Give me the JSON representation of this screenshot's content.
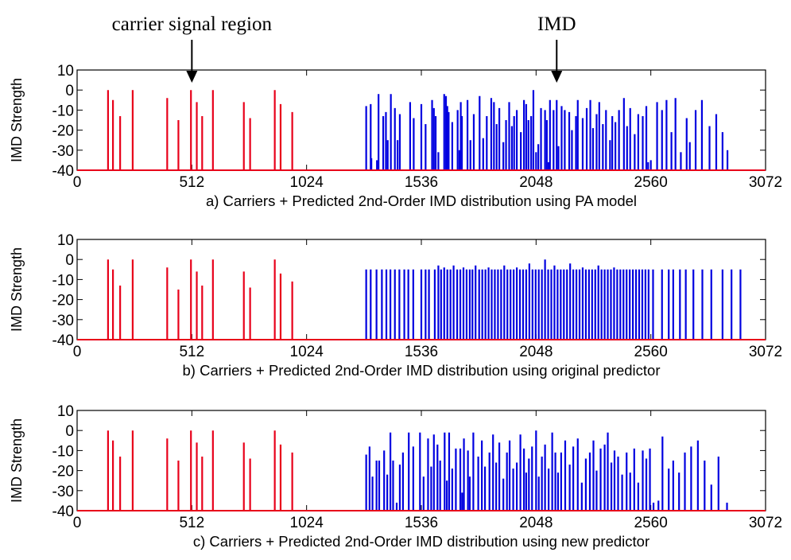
{
  "figure": {
    "annotations": [
      {
        "id": "carrier",
        "text": "carrier signal region",
        "x": 512
      },
      {
        "id": "imd",
        "text": "IMD",
        "x": 2140
      }
    ]
  },
  "chart_data": [
    {
      "type": "bar",
      "caption": "a) Carriers + Predicted 2nd-Order IMD distribution using PA model",
      "ylabel": "IMD Strength",
      "xlim": [
        0,
        3072
      ],
      "ylim": [
        -40,
        10
      ],
      "xticks": [
        0,
        512,
        1024,
        1536,
        2048,
        2560,
        3072
      ],
      "yticks": [
        10,
        0,
        -10,
        -20,
        -30,
        -40
      ],
      "baseline": -40,
      "series": [
        {
          "color": "#e8001a",
          "x": [
            138,
            160,
            192,
            248,
            402,
            452,
            508,
            534,
            558,
            606,
            744,
            772,
            882,
            908,
            960
          ],
          "y": [
            0,
            -5,
            -13,
            0,
            -4,
            -15,
            0,
            -6,
            -13,
            0,
            -6,
            -14,
            0,
            -7,
            -11
          ]
        },
        {
          "color": "#0000e0",
          "x": [
            1290,
            1310,
            1313,
            1338,
            1345,
            1366,
            1378,
            1386,
            1400,
            1418,
            1430,
            1440,
            1486,
            1502,
            1536,
            1555,
            1584,
            1592,
            1600,
            1612,
            1638,
            1646,
            1652,
            1658,
            1674,
            1698,
            1706,
            1712,
            1717,
            1742,
            1755,
            1770,
            1796,
            1812,
            1828,
            1848,
            1860,
            1872,
            1884,
            1902,
            1914,
            1928,
            1940,
            1950,
            1962,
            1980,
            1994,
            2004,
            2014,
            2026,
            2036,
            2048,
            2058,
            2070,
            2088,
            2096,
            2104,
            2110,
            2126,
            2140,
            2148,
            2162,
            2176,
            2196,
            2208,
            2226,
            2234,
            2256,
            2274,
            2290,
            2302,
            2318,
            2330,
            2346,
            2360,
            2378,
            2388,
            2402,
            2418,
            2440,
            2454,
            2468,
            2488,
            2504,
            2524,
            2540,
            2548,
            2560,
            2588,
            2610,
            2630,
            2652,
            2670,
            2694,
            2720,
            2734,
            2760,
            2788,
            2822,
            2852,
            2880,
            2902
          ],
          "y": [
            -8,
            -7,
            -34,
            -35,
            -2,
            -13,
            -11,
            -25,
            -2,
            -9,
            -25,
            -12,
            -6,
            -14,
            -7,
            -17,
            -5,
            -9,
            -13,
            -31,
            -2,
            -3,
            -8,
            -11,
            -16,
            -10,
            -30,
            -6,
            -13,
            -5,
            -25,
            -12,
            -3,
            -24,
            -13,
            -4,
            -6,
            -17,
            -9,
            -26,
            -15,
            -6,
            -18,
            -13,
            -10,
            -21,
            -5,
            -7,
            -15,
            -13,
            0,
            -31,
            -27,
            -9,
            -10,
            -15,
            -36,
            -5,
            -10,
            -5,
            -28,
            -8,
            -10,
            -11,
            -20,
            -13,
            -5,
            -14,
            -9,
            -5,
            -19,
            -12,
            -6,
            -17,
            -10,
            -25,
            -13,
            -16,
            -10,
            -4,
            -18,
            -9,
            -22,
            -12,
            -13,
            -8,
            -36,
            -35,
            -6,
            -10,
            -5,
            -21,
            -4,
            -31,
            -14,
            -26,
            -10,
            -5,
            -18,
            -12,
            -21,
            -30
          ]
        }
      ]
    },
    {
      "type": "bar",
      "caption": "b) Carriers + Predicted 2nd-Order IMD distribution using original predictor",
      "ylabel": "IMD Strength",
      "xlim": [
        0,
        3072
      ],
      "ylim": [
        -40,
        10
      ],
      "xticks": [
        0,
        512,
        1024,
        1536,
        2048,
        2560,
        3072
      ],
      "yticks": [
        10,
        0,
        -10,
        -20,
        -30,
        -40
      ],
      "baseline": -40,
      "series": [
        {
          "color": "#e8001a",
          "x": [
            138,
            160,
            192,
            248,
            402,
            452,
            508,
            534,
            558,
            606,
            744,
            772,
            882,
            908,
            960
          ],
          "y": [
            0,
            -5,
            -13,
            0,
            -4,
            -15,
            0,
            -6,
            -13,
            0,
            -6,
            -14,
            0,
            -7,
            -11
          ]
        },
        {
          "color": "#0000e0",
          "x": [
            1290,
            1310,
            1336,
            1360,
            1380,
            1398,
            1418,
            1438,
            1460,
            1478,
            1500,
            1536,
            1555,
            1570,
            1596,
            1612,
            1624,
            1638,
            1652,
            1666,
            1680,
            1696,
            1710,
            1724,
            1738,
            1752,
            1764,
            1778,
            1794,
            1808,
            1822,
            1836,
            1850,
            1864,
            1878,
            1892,
            1906,
            1920,
            1934,
            1948,
            1962,
            1976,
            1990,
            2004,
            2018,
            2032,
            2046,
            2060,
            2074,
            2088,
            2102,
            2116,
            2130,
            2144,
            2158,
            2172,
            2186,
            2200,
            2214,
            2228,
            2242,
            2256,
            2270,
            2284,
            2298,
            2312,
            2326,
            2340,
            2354,
            2368,
            2382,
            2396,
            2410,
            2424,
            2438,
            2452,
            2466,
            2480,
            2494,
            2508,
            2522,
            2536,
            2550,
            2570,
            2610,
            2640,
            2660,
            2690,
            2716,
            2750,
            2790,
            2830,
            2880,
            2920,
            2960
          ],
          "y": [
            -5,
            -5,
            -5,
            -5,
            -5,
            -5,
            -5,
            -5,
            -5,
            -5,
            -5,
            -5,
            -5,
            -5,
            -5,
            -3,
            -5,
            -4,
            -5,
            -5,
            -3,
            -5,
            -5,
            -4,
            -5,
            -5,
            -5,
            -3,
            -5,
            -5,
            -5,
            -4,
            -5,
            -5,
            -5,
            -5,
            -3,
            -5,
            -5,
            -5,
            -4,
            -5,
            -5,
            -5,
            -2,
            -5,
            -5,
            -5,
            -5,
            0,
            -5,
            -5,
            -3,
            -5,
            -5,
            -5,
            -5,
            -2,
            -5,
            -5,
            -5,
            -4,
            -5,
            -5,
            -5,
            -5,
            -3,
            -5,
            -5,
            -5,
            -5,
            -4,
            -5,
            -5,
            -5,
            -5,
            -5,
            -5,
            -5,
            -5,
            -5,
            -5,
            -5,
            -5,
            -5,
            -5,
            -5,
            -5,
            -5,
            -5,
            -5,
            -5,
            -5,
            -5,
            -5
          ]
        }
      ]
    },
    {
      "type": "bar",
      "caption": "c) Carriers + Predicted 2nd-Order IMD distribution using new predictor",
      "ylabel": "IMD Strength",
      "xlim": [
        0,
        3072
      ],
      "ylim": [
        -40,
        10
      ],
      "xticks": [
        0,
        512,
        1024,
        1536,
        2048,
        2560,
        3072
      ],
      "yticks": [
        10,
        0,
        -10,
        -20,
        -30,
        -40
      ],
      "baseline": -40,
      "series": [
        {
          "color": "#e8001a",
          "x": [
            138,
            160,
            192,
            248,
            402,
            452,
            508,
            534,
            558,
            606,
            744,
            772,
            882,
            908,
            960
          ],
          "y": [
            0,
            -5,
            -13,
            0,
            -4,
            -15,
            0,
            -6,
            -13,
            0,
            -6,
            -14,
            0,
            -7,
            -11
          ]
        },
        {
          "color": "#0000e0",
          "x": [
            1290,
            1305,
            1318,
            1336,
            1348,
            1370,
            1384,
            1398,
            1410,
            1426,
            1440,
            1454,
            1480,
            1500,
            1530,
            1546,
            1566,
            1580,
            1592,
            1608,
            1620,
            1640,
            1650,
            1660,
            1674,
            1690,
            1710,
            1718,
            1726,
            1744,
            1752,
            1768,
            1790,
            1806,
            1820,
            1840,
            1856,
            1870,
            1884,
            1902,
            1918,
            1930,
            1946,
            1962,
            1978,
            1994,
            2004,
            2016,
            2030,
            2048,
            2060,
            2074,
            2088,
            2104,
            2120,
            2134,
            2146,
            2160,
            2178,
            2198,
            2214,
            2234,
            2252,
            2270,
            2288,
            2304,
            2318,
            2336,
            2354,
            2368,
            2384,
            2398,
            2414,
            2432,
            2452,
            2468,
            2486,
            2504,
            2524,
            2540,
            2556,
            2572,
            2594,
            2612,
            2640,
            2660,
            2686,
            2712,
            2740,
            2770,
            2800,
            2830,
            2862,
            2900
          ],
          "y": [
            -12,
            -8,
            -23,
            -15,
            -15,
            -10,
            -22,
            -1,
            -15,
            -36,
            -17,
            -11,
            -1,
            -8,
            -1,
            -23,
            -4,
            -18,
            -2,
            -7,
            -15,
            -1,
            -25,
            -1,
            -19,
            -9,
            -9,
            -31,
            -4,
            -10,
            -23,
            -1,
            -13,
            -5,
            -18,
            -11,
            -2,
            -16,
            -6,
            -24,
            -11,
            -5,
            -19,
            -16,
            -2,
            -9,
            -21,
            -14,
            -8,
            0,
            -23,
            -13,
            -7,
            -19,
            -1,
            -11,
            -21,
            -11,
            -5,
            -17,
            -8,
            -4,
            -26,
            -14,
            -11,
            -5,
            -20,
            -9,
            -7,
            -1,
            -16,
            -10,
            -13,
            -22,
            -11,
            -21,
            -9,
            -26,
            -10,
            -14,
            -9,
            -36,
            -35,
            -3,
            -19,
            -15,
            -21,
            -11,
            -8,
            -5,
            -15,
            -27,
            -13,
            -36
          ]
        }
      ]
    }
  ]
}
